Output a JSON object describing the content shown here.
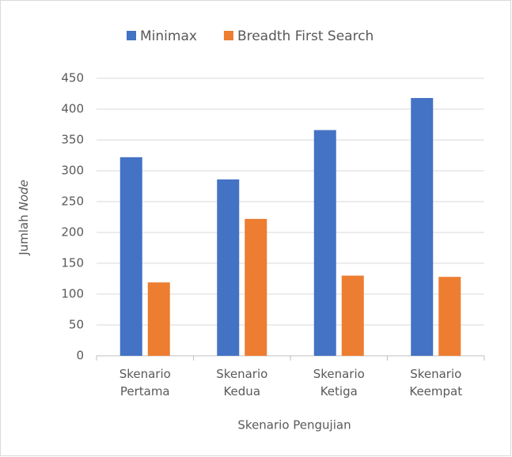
{
  "chart_data": {
    "type": "bar",
    "categories": [
      "Skenario Pertama",
      "Skenario Kedua",
      "Skenario Ketiga",
      "Skenario Keempat"
    ],
    "series": [
      {
        "name": "Minimax",
        "color": "#4472c4",
        "values": [
          322,
          286,
          366,
          418
        ]
      },
      {
        "name": "Breadth First Search",
        "color": "#ed7d31",
        "values": [
          119,
          222,
          130,
          128
        ]
      }
    ],
    "x_label": "Skenario Pengujian",
    "y_label": [
      "Jumlah",
      "Node"
    ],
    "ylim": [
      0,
      450
    ],
    "yticks": [
      0,
      50,
      100,
      150,
      200,
      250,
      300,
      350,
      400,
      450
    ],
    "grid": true,
    "legend": "top"
  }
}
